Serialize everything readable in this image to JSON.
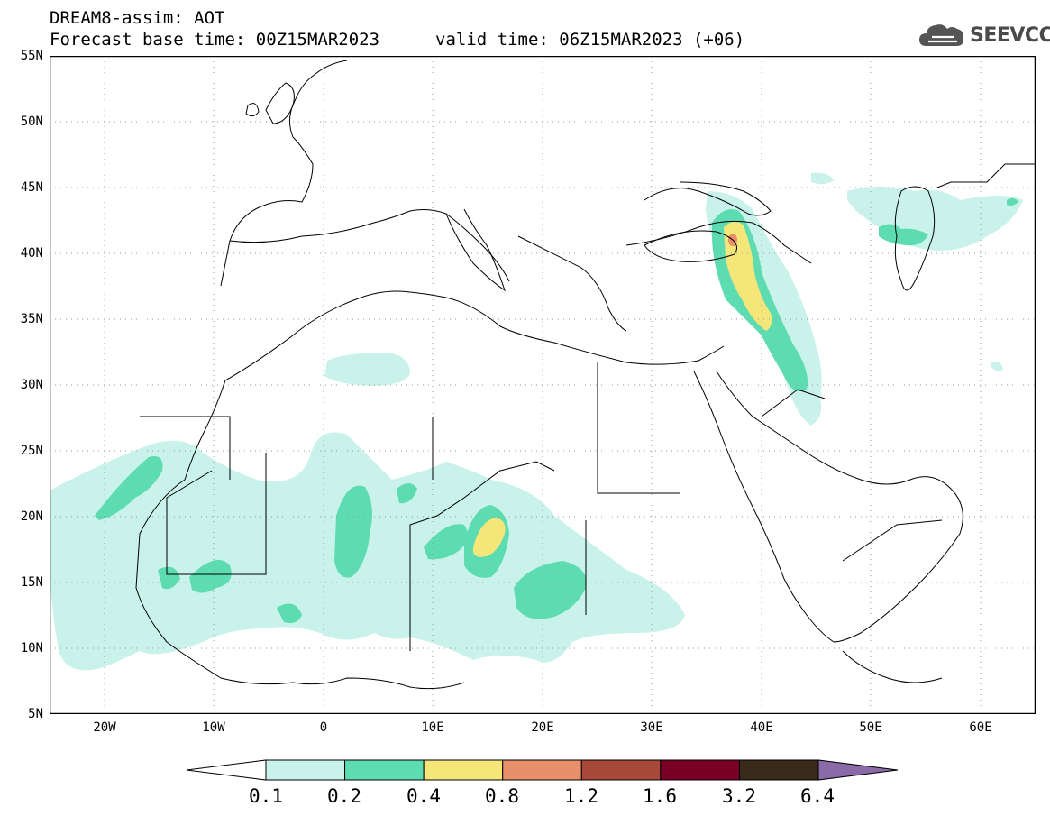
{
  "header": {
    "line1": "DREAM8-assim: AOT",
    "line2": "Forecast base time: 00Z15MAR2023",
    "line3": "valid time: 06Z15MAR2023 (+06)"
  },
  "logo": {
    "text": "SEEVCCC",
    "icon": "cloud-icon"
  },
  "map": {
    "variable": "AOT",
    "lat_range": [
      5,
      55
    ],
    "lon_range": [
      -25,
      65
    ],
    "lat_ticks": [
      "55N",
      "50N",
      "45N",
      "40N",
      "35N",
      "30N",
      "25N",
      "20N",
      "15N",
      "10N",
      "5N"
    ],
    "lon_ticks": [
      "20W",
      "10W",
      "0",
      "10E",
      "20E",
      "30E",
      "40E",
      "50E",
      "60E"
    ],
    "gridlines": "dotted"
  },
  "colorbar": {
    "levels": [
      "0.1",
      "0.2",
      "0.4",
      "0.8",
      "1.2",
      "1.6",
      "3.2",
      "6.4"
    ],
    "colors": [
      "#ffffff",
      "#c8f2ea",
      "#5cdcb0",
      "#f5e67a",
      "#e8906a",
      "#a84838",
      "#7a0028",
      "#3a2a1a",
      "#8a6aa8"
    ]
  }
}
